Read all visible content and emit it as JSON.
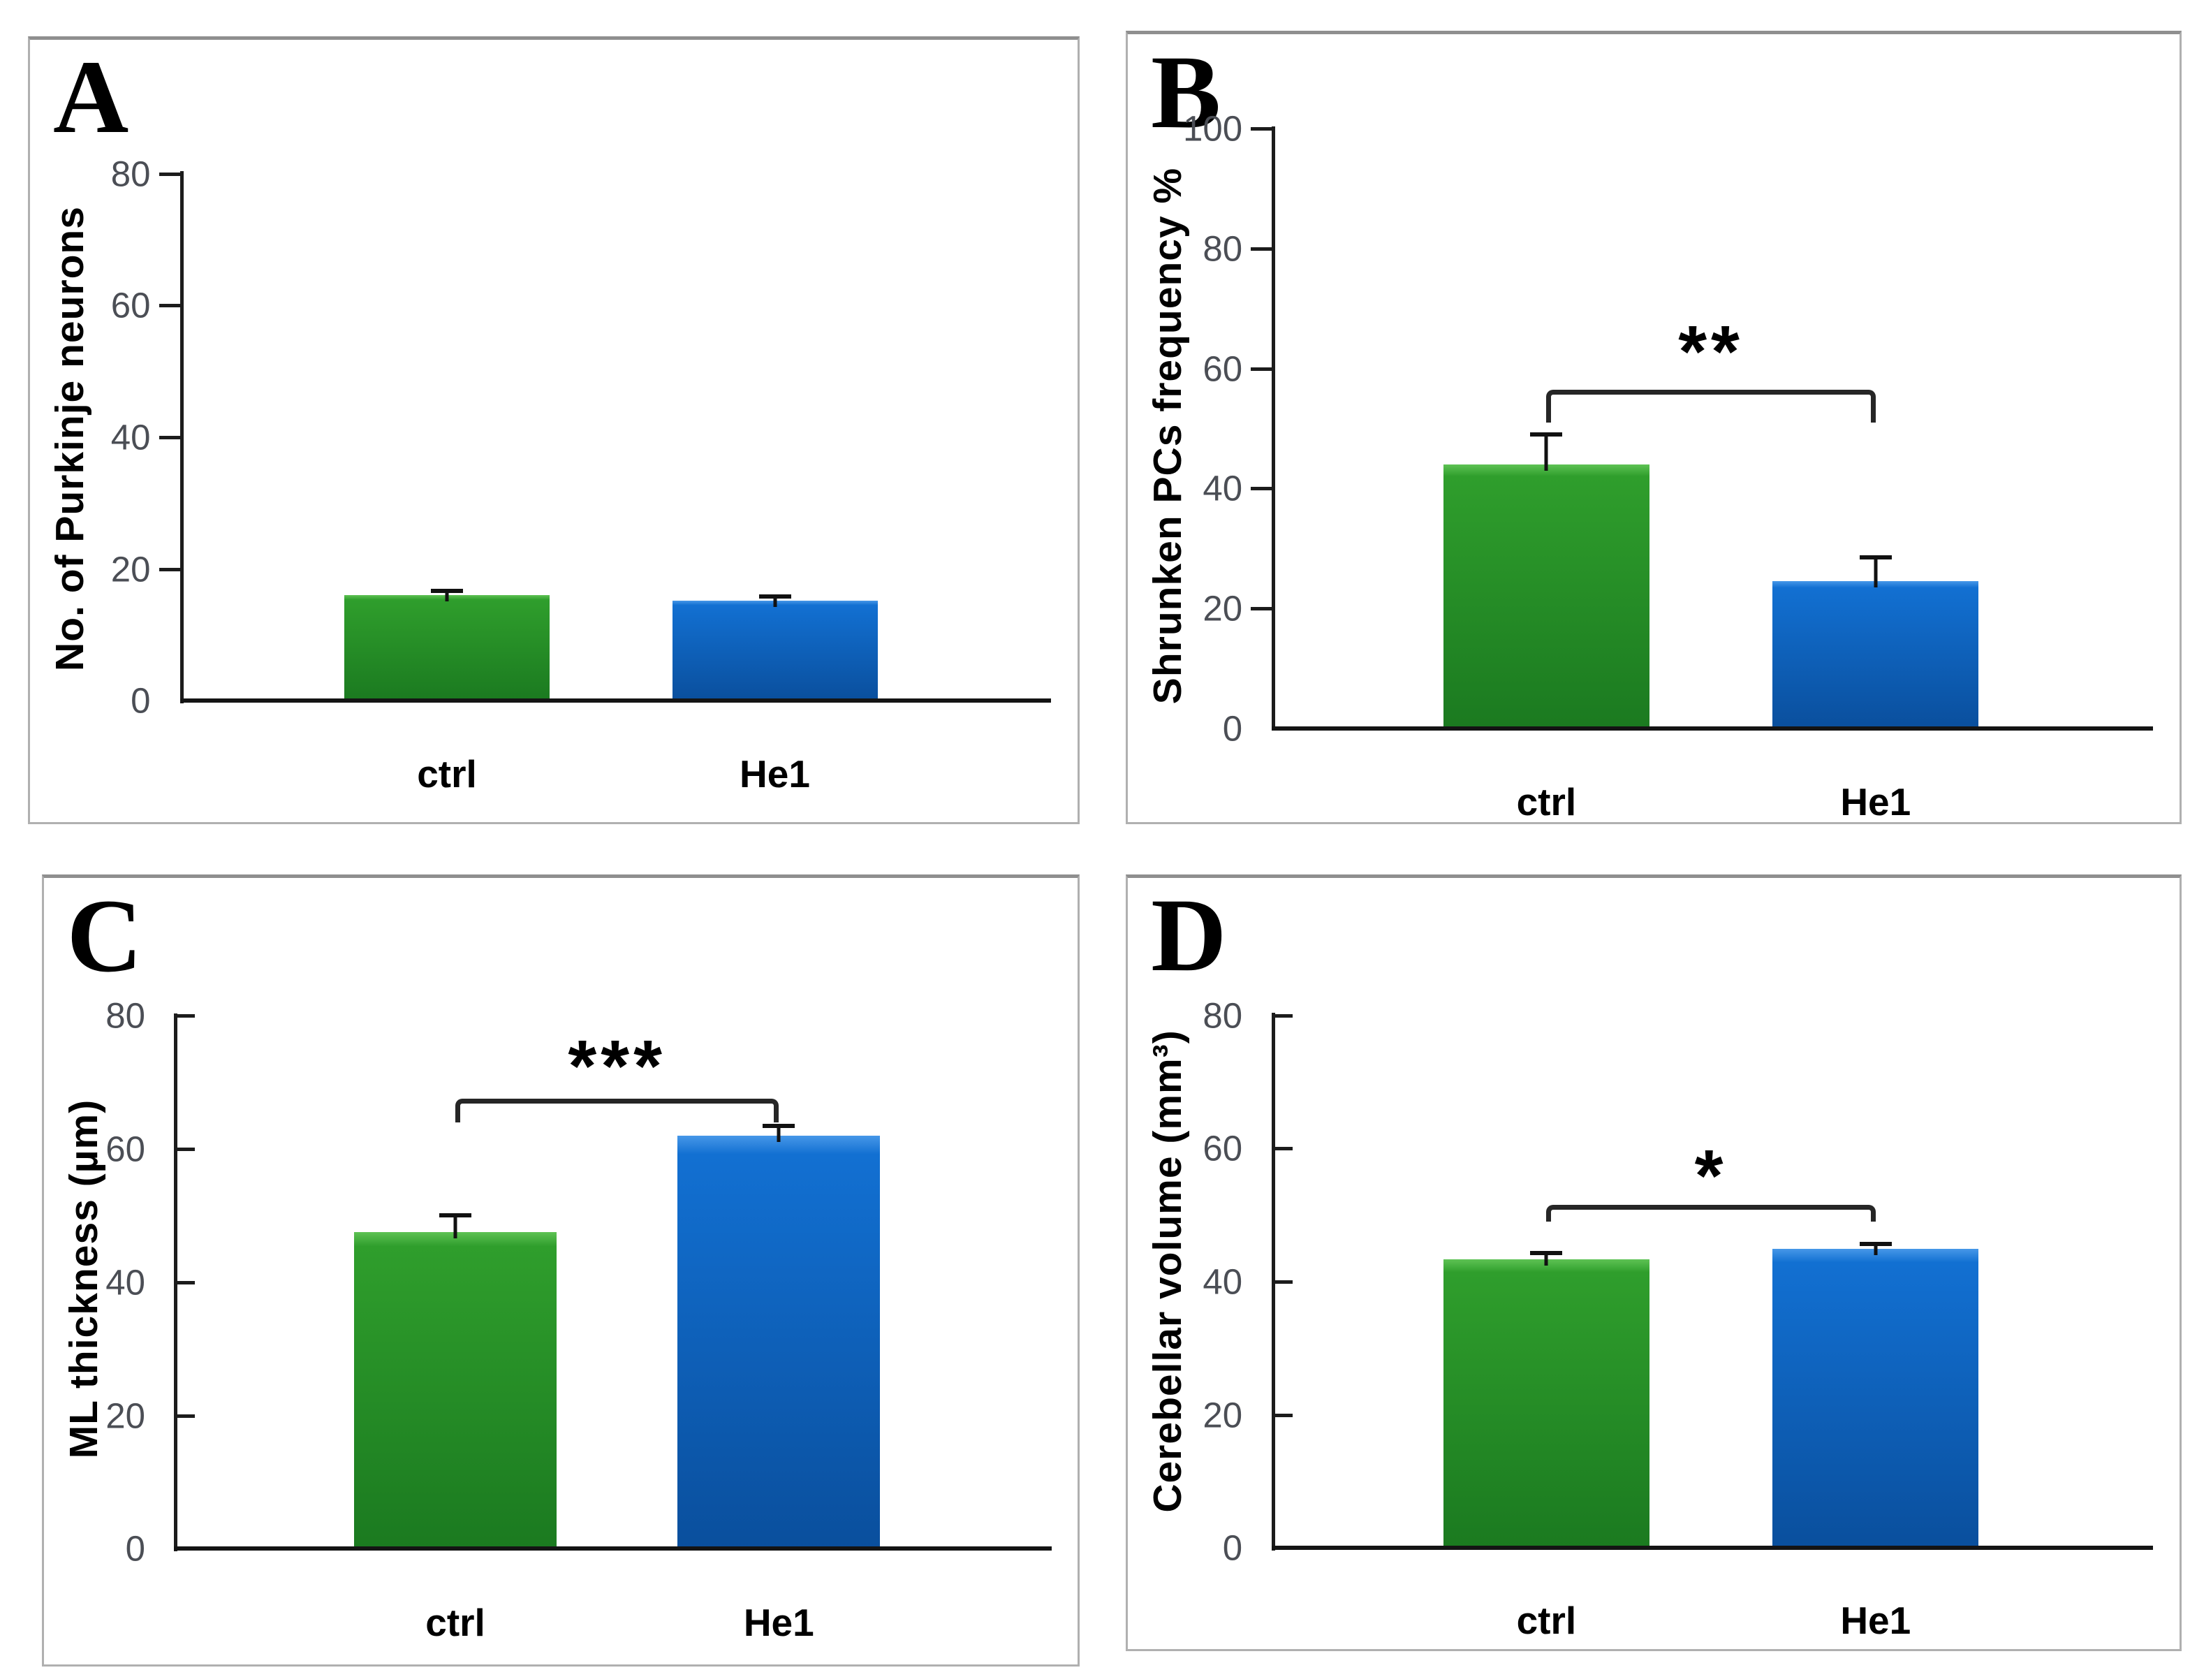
{
  "figure_title": "",
  "colors": {
    "ctrl_bar": {
      "top": "#5ec254",
      "body": "#2f9e2c",
      "bottom": "#1b7a20"
    },
    "he1_bar": {
      "top": "#4697e8",
      "body": "#1270d2",
      "bottom": "#0a4f9d"
    },
    "axis": "#1c1c1c",
    "tick_label": "#4b4e55",
    "significance": "#262626",
    "panel_border": "#b0b0b0"
  },
  "chart_data": [
    {
      "panel": "A",
      "type": "bar",
      "ylabel": "No. of Purkinje neurons",
      "categories": [
        "ctrl",
        "He1"
      ],
      "values": [
        16,
        15.2
      ],
      "errors": [
        0.7,
        0.6
      ],
      "ylim": [
        0,
        80
      ],
      "yticks": [
        0,
        20,
        40,
        60,
        80
      ],
      "bar_colors": [
        "ctrl_bar",
        "he1_bar"
      ],
      "grid": false,
      "legend": null,
      "significance": null
    },
    {
      "panel": "B",
      "type": "bar",
      "ylabel": "Shrunken PCs frequency %",
      "categories": [
        "ctrl",
        "He1"
      ],
      "values": [
        44,
        24.5
      ],
      "errors": [
        5,
        4
      ],
      "ylim": [
        0,
        100
      ],
      "yticks": [
        0,
        20,
        40,
        60,
        80,
        100
      ],
      "bar_colors": [
        "ctrl_bar",
        "he1_bar"
      ],
      "grid": false,
      "legend": null,
      "significance": {
        "label": "**",
        "bracket_y": 56.5,
        "drop": 5.5,
        "label_y": 63.5
      }
    },
    {
      "panel": "C",
      "type": "bar",
      "ylabel": "ML thickness (µm)",
      "categories": [
        "ctrl",
        "He1"
      ],
      "values": [
        47.5,
        62
      ],
      "errors": [
        2.5,
        1.5
      ],
      "ylim": [
        0,
        80
      ],
      "yticks": [
        0,
        20,
        40,
        60,
        80
      ],
      "bar_colors": [
        "ctrl_bar",
        "he1_bar"
      ],
      "grid": false,
      "legend": null,
      "significance": {
        "label": "***",
        "bracket_y": 67.5,
        "drop": 3.5,
        "label_y": 73
      }
    },
    {
      "panel": "D",
      "type": "bar",
      "ylabel": "Cerebellar volume (mm³)",
      "categories": [
        "ctrl",
        "He1"
      ],
      "values": [
        43.3,
        44.9
      ],
      "errors": [
        1,
        0.8
      ],
      "ylim": [
        0,
        80
      ],
      "yticks": [
        0,
        20,
        40,
        60,
        80
      ],
      "bar_colors": [
        "ctrl_bar",
        "he1_bar"
      ],
      "grid": false,
      "legend": null,
      "significance": {
        "label": "*",
        "bracket_y": 51.5,
        "drop": 2.5,
        "label_y": 56.5
      }
    }
  ]
}
